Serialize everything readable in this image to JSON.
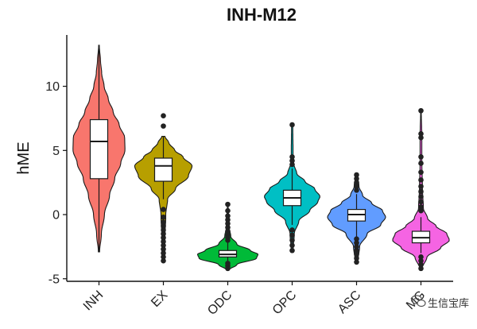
{
  "chart_data": {
    "type": "violin",
    "title": "INH-M12",
    "xlabel": "",
    "ylabel": "hME",
    "ylim": [
      -5.2,
      14
    ],
    "yticks": [
      -5,
      0,
      5,
      10
    ],
    "categories": [
      "INH",
      "EX",
      "ODC",
      "OPC",
      "ASC",
      "MG"
    ],
    "groups": [
      {
        "name": "INH",
        "color": "#F8766D",
        "box": {
          "q1": 2.8,
          "median": 5.7,
          "q3": 7.4
        },
        "whisker": [
          -2.9,
          13.2
        ],
        "density": [
          [
            -2.9,
            0.02
          ],
          [
            -1.5,
            0.08
          ],
          [
            0,
            0.18
          ],
          [
            1.5,
            0.35
          ],
          [
            2.8,
            0.52
          ],
          [
            4,
            0.72
          ],
          [
            5,
            0.86
          ],
          [
            6,
            0.85
          ],
          [
            7,
            0.67
          ],
          [
            8,
            0.47
          ],
          [
            9,
            0.31
          ],
          [
            10,
            0.17
          ],
          [
            11,
            0.09
          ],
          [
            12,
            0.05
          ],
          [
            13.2,
            0.01
          ]
        ]
      },
      {
        "name": "EX",
        "color": "#B79F00",
        "box": {
          "q1": 2.6,
          "median": 3.8,
          "q3": 4.4
        },
        "whisker": [
          1.2,
          6.1
        ],
        "density": [
          [
            -3.6,
            0.03
          ],
          [
            -2,
            0.05
          ],
          [
            0,
            0.08
          ],
          [
            1.2,
            0.14
          ],
          [
            2,
            0.4
          ],
          [
            3,
            0.83
          ],
          [
            3.8,
            0.95
          ],
          [
            4.5,
            0.65
          ],
          [
            5,
            0.38
          ],
          [
            5.6,
            0.18
          ],
          [
            6.1,
            0.05
          ]
        ],
        "outliers": [
          6.9,
          7.7,
          0.4,
          -0.2,
          -0.6,
          -0.9,
          -1.2,
          -1.5,
          -1.8,
          -2.1,
          -2.4,
          -2.7,
          -3.0,
          -3.3,
          -3.6
        ]
      },
      {
        "name": "ODC",
        "color": "#00BA38",
        "box": {
          "q1": -3.3,
          "median": -3.1,
          "q3": -2.8
        },
        "whisker": [
          -3.6,
          -2.0
        ],
        "density": [
          [
            -4.3,
            0.05
          ],
          [
            -3.9,
            0.3
          ],
          [
            -3.4,
            0.95
          ],
          [
            -3.1,
            1.0
          ],
          [
            -2.8,
            0.75
          ],
          [
            -2.3,
            0.3
          ],
          [
            -1.7,
            0.1
          ],
          [
            -1.0,
            0.05
          ],
          [
            0.8,
            0.01
          ]
        ],
        "outliers": [
          0.8,
          0.3,
          -0.1,
          -0.4,
          -0.7,
          -1.0,
          -1.3,
          -1.6,
          -1.8,
          -2.0,
          -3.8,
          -4.0,
          -4.2
        ]
      },
      {
        "name": "OPC",
        "color": "#00BFC4",
        "box": {
          "q1": 0.7,
          "median": 1.3,
          "q3": 1.9
        },
        "whisker": [
          -0.8,
          3.6
        ],
        "density": [
          [
            -2.8,
            0.03
          ],
          [
            -1.5,
            0.07
          ],
          [
            -0.5,
            0.22
          ],
          [
            0.3,
            0.58
          ],
          [
            1,
            0.85
          ],
          [
            1.4,
            0.92
          ],
          [
            2,
            0.75
          ],
          [
            2.6,
            0.42
          ],
          [
            3.2,
            0.15
          ],
          [
            4,
            0.05
          ],
          [
            4.7,
            0.03
          ],
          [
            7,
            0.02
          ]
        ],
        "outliers": [
          7.0,
          4.5,
          4.2,
          3.9,
          -1.2,
          -1.6,
          -2.0,
          -2.4,
          -2.8
        ]
      },
      {
        "name": "ASC",
        "color": "#619CFF",
        "box": {
          "q1": -0.5,
          "median": 0.0,
          "q3": 0.4
        },
        "whisker": [
          -1.7,
          1.6
        ],
        "density": [
          [
            -3.7,
            0.04
          ],
          [
            -2.5,
            0.1
          ],
          [
            -1.5,
            0.35
          ],
          [
            -0.8,
            0.8
          ],
          [
            -0.2,
            0.96
          ],
          [
            0.3,
            0.86
          ],
          [
            0.9,
            0.5
          ],
          [
            1.5,
            0.2
          ],
          [
            2.2,
            0.08
          ],
          [
            3.1,
            0.03
          ]
        ],
        "outliers": [
          3.1,
          2.8,
          2.5,
          2.2,
          1.9,
          -1.9,
          -2.2,
          -2.5,
          -2.8,
          -3.1,
          -3.4,
          -3.7
        ]
      },
      {
        "name": "MG",
        "color": "#F564E3",
        "box": {
          "q1": -2.2,
          "median": -1.8,
          "q3": -1.3
        },
        "whisker": [
          -3.0,
          -0.2
        ],
        "density": [
          [
            -4.2,
            0.04
          ],
          [
            -3.3,
            0.2
          ],
          [
            -2.6,
            0.65
          ],
          [
            -2,
            0.94
          ],
          [
            -1.5,
            0.86
          ],
          [
            -0.9,
            0.5
          ],
          [
            -0.3,
            0.22
          ],
          [
            0.5,
            0.08
          ],
          [
            2,
            0.05
          ],
          [
            4,
            0.03
          ],
          [
            6,
            0.03
          ],
          [
            8.1,
            0.01
          ]
        ],
        "outliers": [
          8.1,
          6.3,
          6.0,
          4.5,
          4.0,
          3.3,
          2.7,
          2.2,
          1.8,
          1.4,
          1.0,
          0.6,
          0.3,
          -3.3,
          -3.6,
          -3.9,
          -4.2
        ]
      }
    ]
  },
  "watermark": "生信宝库",
  "colors": {
    "outline": "#1a1a1a",
    "axis": "#111111",
    "point": "#222222"
  }
}
